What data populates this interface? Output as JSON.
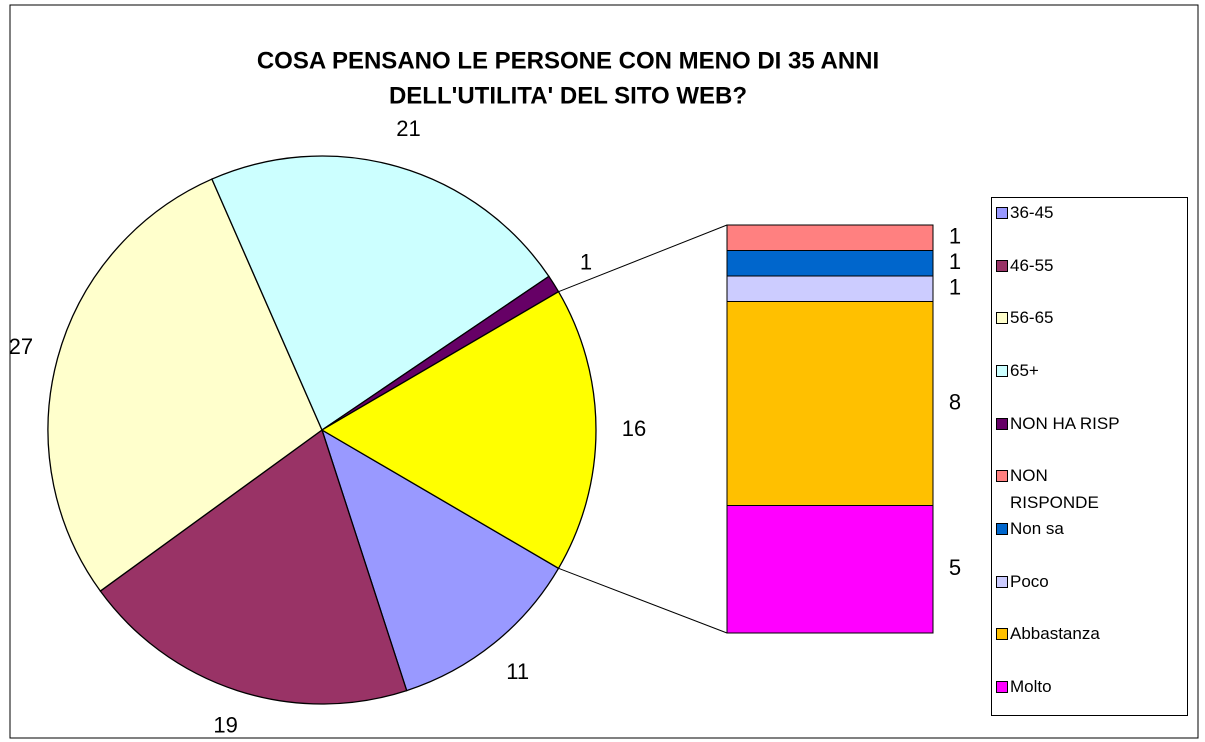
{
  "chart_data": {
    "type": "bar_of_pie",
    "title": [
      "COSA PENSANO LE PERSONE CON MENO DI 35 ANNI",
      "DELL'UTILITA' DEL SITO WEB?"
    ],
    "pie": {
      "categories": [
        "36-45",
        "46-55",
        "56-65",
        "65+",
        "NON HA RISP",
        null
      ],
      "values": [
        11,
        19,
        27,
        21,
        1,
        16
      ],
      "colors": [
        "#9999ff",
        "#993366",
        "#ffffcc",
        "#ccffff",
        "#660066",
        "#ffff00"
      ]
    },
    "bar": {
      "categories": [
        "NON RISPONDE",
        "Non sa",
        "Poco",
        "Abbastanza",
        "Molto"
      ],
      "values": [
        1,
        1,
        1,
        8,
        5
      ],
      "colors": [
        "#ff8080",
        "#0066cc",
        "#ccccff",
        "#ffc000",
        "#ff00ff"
      ]
    },
    "legend": "right"
  }
}
